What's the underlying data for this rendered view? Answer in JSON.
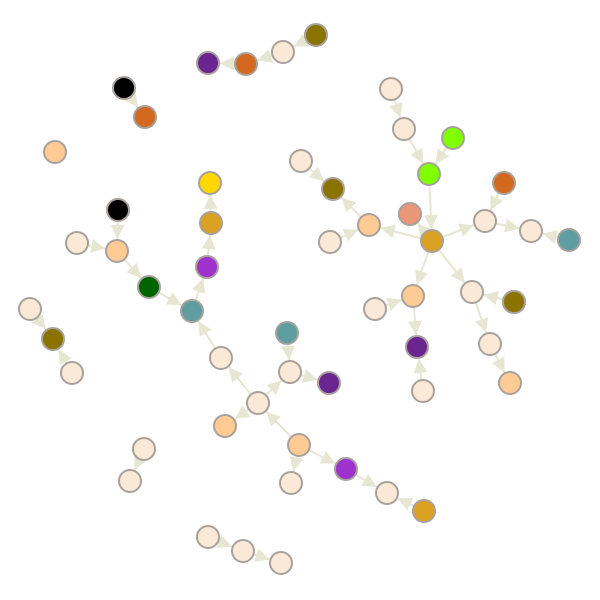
{
  "colors": {
    "edge": "#e6e6d2",
    "node_stroke": "#a8a19c",
    "pale": "#fae9d6",
    "peach": "#fecb95",
    "gold": "#dba122",
    "olive": "#8b7300",
    "purple": "#6b2591",
    "violet": "#9f32cd",
    "orange": "#d2691f",
    "teal": "#5e9ea0",
    "green": "#7fff00",
    "darkgreen": "#006400",
    "yellow": "#ffd700",
    "salmon": "#ea9679",
    "black": "#000000"
  },
  "graph": {
    "nodes": [
      {
        "id": "n1",
        "color": "olive"
      },
      {
        "id": "n2",
        "color": "pale"
      },
      {
        "id": "n3",
        "color": "orange"
      },
      {
        "id": "n4",
        "color": "purple"
      },
      {
        "id": "n5",
        "color": "black"
      },
      {
        "id": "n6",
        "color": "orange"
      },
      {
        "id": "n7",
        "color": "peach"
      },
      {
        "id": "n8",
        "color": "pale"
      },
      {
        "id": "n9",
        "color": "pale"
      },
      {
        "id": "n10",
        "color": "green"
      },
      {
        "id": "n11",
        "color": "green"
      },
      {
        "id": "n12",
        "color": "pale"
      },
      {
        "id": "n13",
        "color": "olive"
      },
      {
        "id": "n14",
        "color": "orange"
      },
      {
        "id": "n15",
        "color": "yellow"
      },
      {
        "id": "n16",
        "color": "black"
      },
      {
        "id": "n17",
        "color": "salmon"
      },
      {
        "id": "n18",
        "color": "peach"
      },
      {
        "id": "n19",
        "color": "pale"
      },
      {
        "id": "n20",
        "color": "gold"
      },
      {
        "id": "n21",
        "color": "pale"
      },
      {
        "id": "n22",
        "color": "pale"
      },
      {
        "id": "n23",
        "color": "teal"
      },
      {
        "id": "n24",
        "color": "pale"
      },
      {
        "id": "n25",
        "color": "peach"
      },
      {
        "id": "n26",
        "color": "gold"
      },
      {
        "id": "n27",
        "color": "violet"
      },
      {
        "id": "n28",
        "color": "darkgreen"
      },
      {
        "id": "n29",
        "color": "pale"
      },
      {
        "id": "n30",
        "color": "pale"
      },
      {
        "id": "n31",
        "color": "olive"
      },
      {
        "id": "n32",
        "color": "pale"
      },
      {
        "id": "n33",
        "color": "peach"
      },
      {
        "id": "n34",
        "color": "olive"
      },
      {
        "id": "n35",
        "color": "pale"
      },
      {
        "id": "n36",
        "color": "teal"
      },
      {
        "id": "n37",
        "color": "purple"
      },
      {
        "id": "n38",
        "color": "pale"
      },
      {
        "id": "n39",
        "color": "pale"
      },
      {
        "id": "n40",
        "color": "teal"
      },
      {
        "id": "n41",
        "color": "pale"
      },
      {
        "id": "n42",
        "color": "pale"
      },
      {
        "id": "n43",
        "color": "peach"
      },
      {
        "id": "n44",
        "color": "peach"
      },
      {
        "id": "n45",
        "color": "peach"
      },
      {
        "id": "n46",
        "color": "purple"
      },
      {
        "id": "n47",
        "color": "pale"
      },
      {
        "id": "n48",
        "color": "pale"
      },
      {
        "id": "n49",
        "color": "pale"
      },
      {
        "id": "n50",
        "color": "violet"
      },
      {
        "id": "n51",
        "color": "pale"
      },
      {
        "id": "n52",
        "color": "gold"
      },
      {
        "id": "n53",
        "color": "pale"
      },
      {
        "id": "n54",
        "color": "pale"
      },
      {
        "id": "n55",
        "color": "pale"
      }
    ],
    "edges": [
      [
        "n1",
        "n2"
      ],
      [
        "n2",
        "n3"
      ],
      [
        "n3",
        "n4"
      ],
      [
        "n5",
        "n6"
      ],
      [
        "n8",
        "n9"
      ],
      [
        "n9",
        "n10"
      ],
      [
        "n11",
        "n10"
      ],
      [
        "n10",
        "n20"
      ],
      [
        "n12",
        "n13"
      ],
      [
        "n14",
        "n19"
      ],
      [
        "n20",
        "n17"
      ],
      [
        "n20",
        "n18"
      ],
      [
        "n18",
        "n13"
      ],
      [
        "n21",
        "n18"
      ],
      [
        "n20",
        "n19"
      ],
      [
        "n19",
        "n22"
      ],
      [
        "n23",
        "n22"
      ],
      [
        "n20",
        "n24"
      ],
      [
        "n24",
        "n39"
      ],
      [
        "n34",
        "n24"
      ],
      [
        "n31",
        "n24"
      ],
      [
        "n20",
        "n33"
      ],
      [
        "n33",
        "n37"
      ],
      [
        "n35",
        "n33"
      ],
      [
        "n38",
        "n37"
      ],
      [
        "n39",
        "n43"
      ],
      [
        "n16",
        "n25"
      ],
      [
        "n30",
        "n25"
      ],
      [
        "n25",
        "n28"
      ],
      [
        "n28",
        "n36"
      ],
      [
        "n36",
        "n27"
      ],
      [
        "n27",
        "n26"
      ],
      [
        "n26",
        "n15"
      ],
      [
        "n41",
        "n36"
      ],
      [
        "n47",
        "n41"
      ],
      [
        "n47",
        "n44"
      ],
      [
        "n47",
        "n42"
      ],
      [
        "n40",
        "n42"
      ],
      [
        "n42",
        "n46"
      ],
      [
        "n45",
        "n47"
      ],
      [
        "n45",
        "n51"
      ],
      [
        "n45",
        "n50"
      ],
      [
        "n50",
        "n51b"
      ],
      [
        "n32",
        "n31b"
      ],
      [
        "n29",
        "n31b"
      ],
      [
        "n48",
        "n49"
      ],
      [
        "n54",
        "n55"
      ],
      [
        "n53",
        "n54"
      ]
    ]
  }
}
